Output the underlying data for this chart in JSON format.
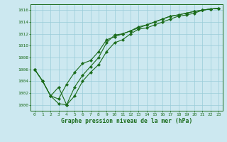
{
  "xlabel_label": "Graphe pression niveau de la mer (hPa)",
  "x_ticks": [
    0,
    1,
    2,
    3,
    4,
    5,
    6,
    7,
    8,
    9,
    10,
    11,
    12,
    13,
    14,
    15,
    16,
    17,
    18,
    19,
    20,
    21,
    22,
    23
  ],
  "ylim": [
    999.0,
    1017.0
  ],
  "y_ticks": [
    1000,
    1002,
    1004,
    1006,
    1008,
    1010,
    1012,
    1014,
    1016
  ],
  "line1": {
    "x": [
      0,
      1,
      2,
      3,
      4,
      5,
      6,
      7,
      8,
      9,
      10,
      11,
      12,
      13,
      14,
      15,
      16,
      17,
      18,
      19,
      20,
      21,
      22,
      23
    ],
    "y": [
      1006,
      1004,
      1001.5,
      1003,
      1000,
      1003,
      1005,
      1006.5,
      1008,
      1010.5,
      1011.8,
      1012,
      1012.5,
      1013.2,
      1013.5,
      1014,
      1014.5,
      1015,
      1015.2,
      1015.5,
      1015.8,
      1016,
      1016.2,
      1016.3
    ]
  },
  "line2": {
    "x": [
      0,
      1,
      2,
      3,
      4,
      5,
      6,
      7,
      8,
      9,
      10,
      11,
      12,
      13,
      14,
      15,
      16,
      17,
      18,
      19,
      20,
      21,
      22,
      23
    ],
    "y": [
      1006,
      1004,
      1001.5,
      1001,
      1003.5,
      1005.5,
      1007,
      1007.5,
      1009,
      1011,
      1011.5,
      1012,
      1012.5,
      1013,
      1013.5,
      1014,
      1014.5,
      1015,
      1015.2,
      1015.5,
      1015.8,
      1016,
      1016.2,
      1016.3
    ]
  },
  "line3": {
    "x": [
      0,
      1,
      2,
      3,
      4,
      5,
      6,
      7,
      8,
      9,
      10,
      11,
      12,
      13,
      14,
      15,
      16,
      17,
      18,
      19,
      20,
      21,
      22,
      23
    ],
    "y": [
      1006,
      1004,
      1001.5,
      1000.2,
      1000,
      1001.5,
      1004,
      1005.5,
      1006.8,
      1009,
      1010.5,
      1011,
      1012,
      1012.8,
      1013,
      1013.5,
      1014,
      1014.5,
      1015,
      1015.2,
      1015.5,
      1016,
      1016.2,
      1016.3
    ]
  },
  "line_color": "#1a6b1a",
  "bg_color": "#cce8f0",
  "grid_color": "#99ccd8",
  "text_color": "#1a6b1a",
  "marker": "D",
  "marker_size": 2.2,
  "line_width": 0.8
}
